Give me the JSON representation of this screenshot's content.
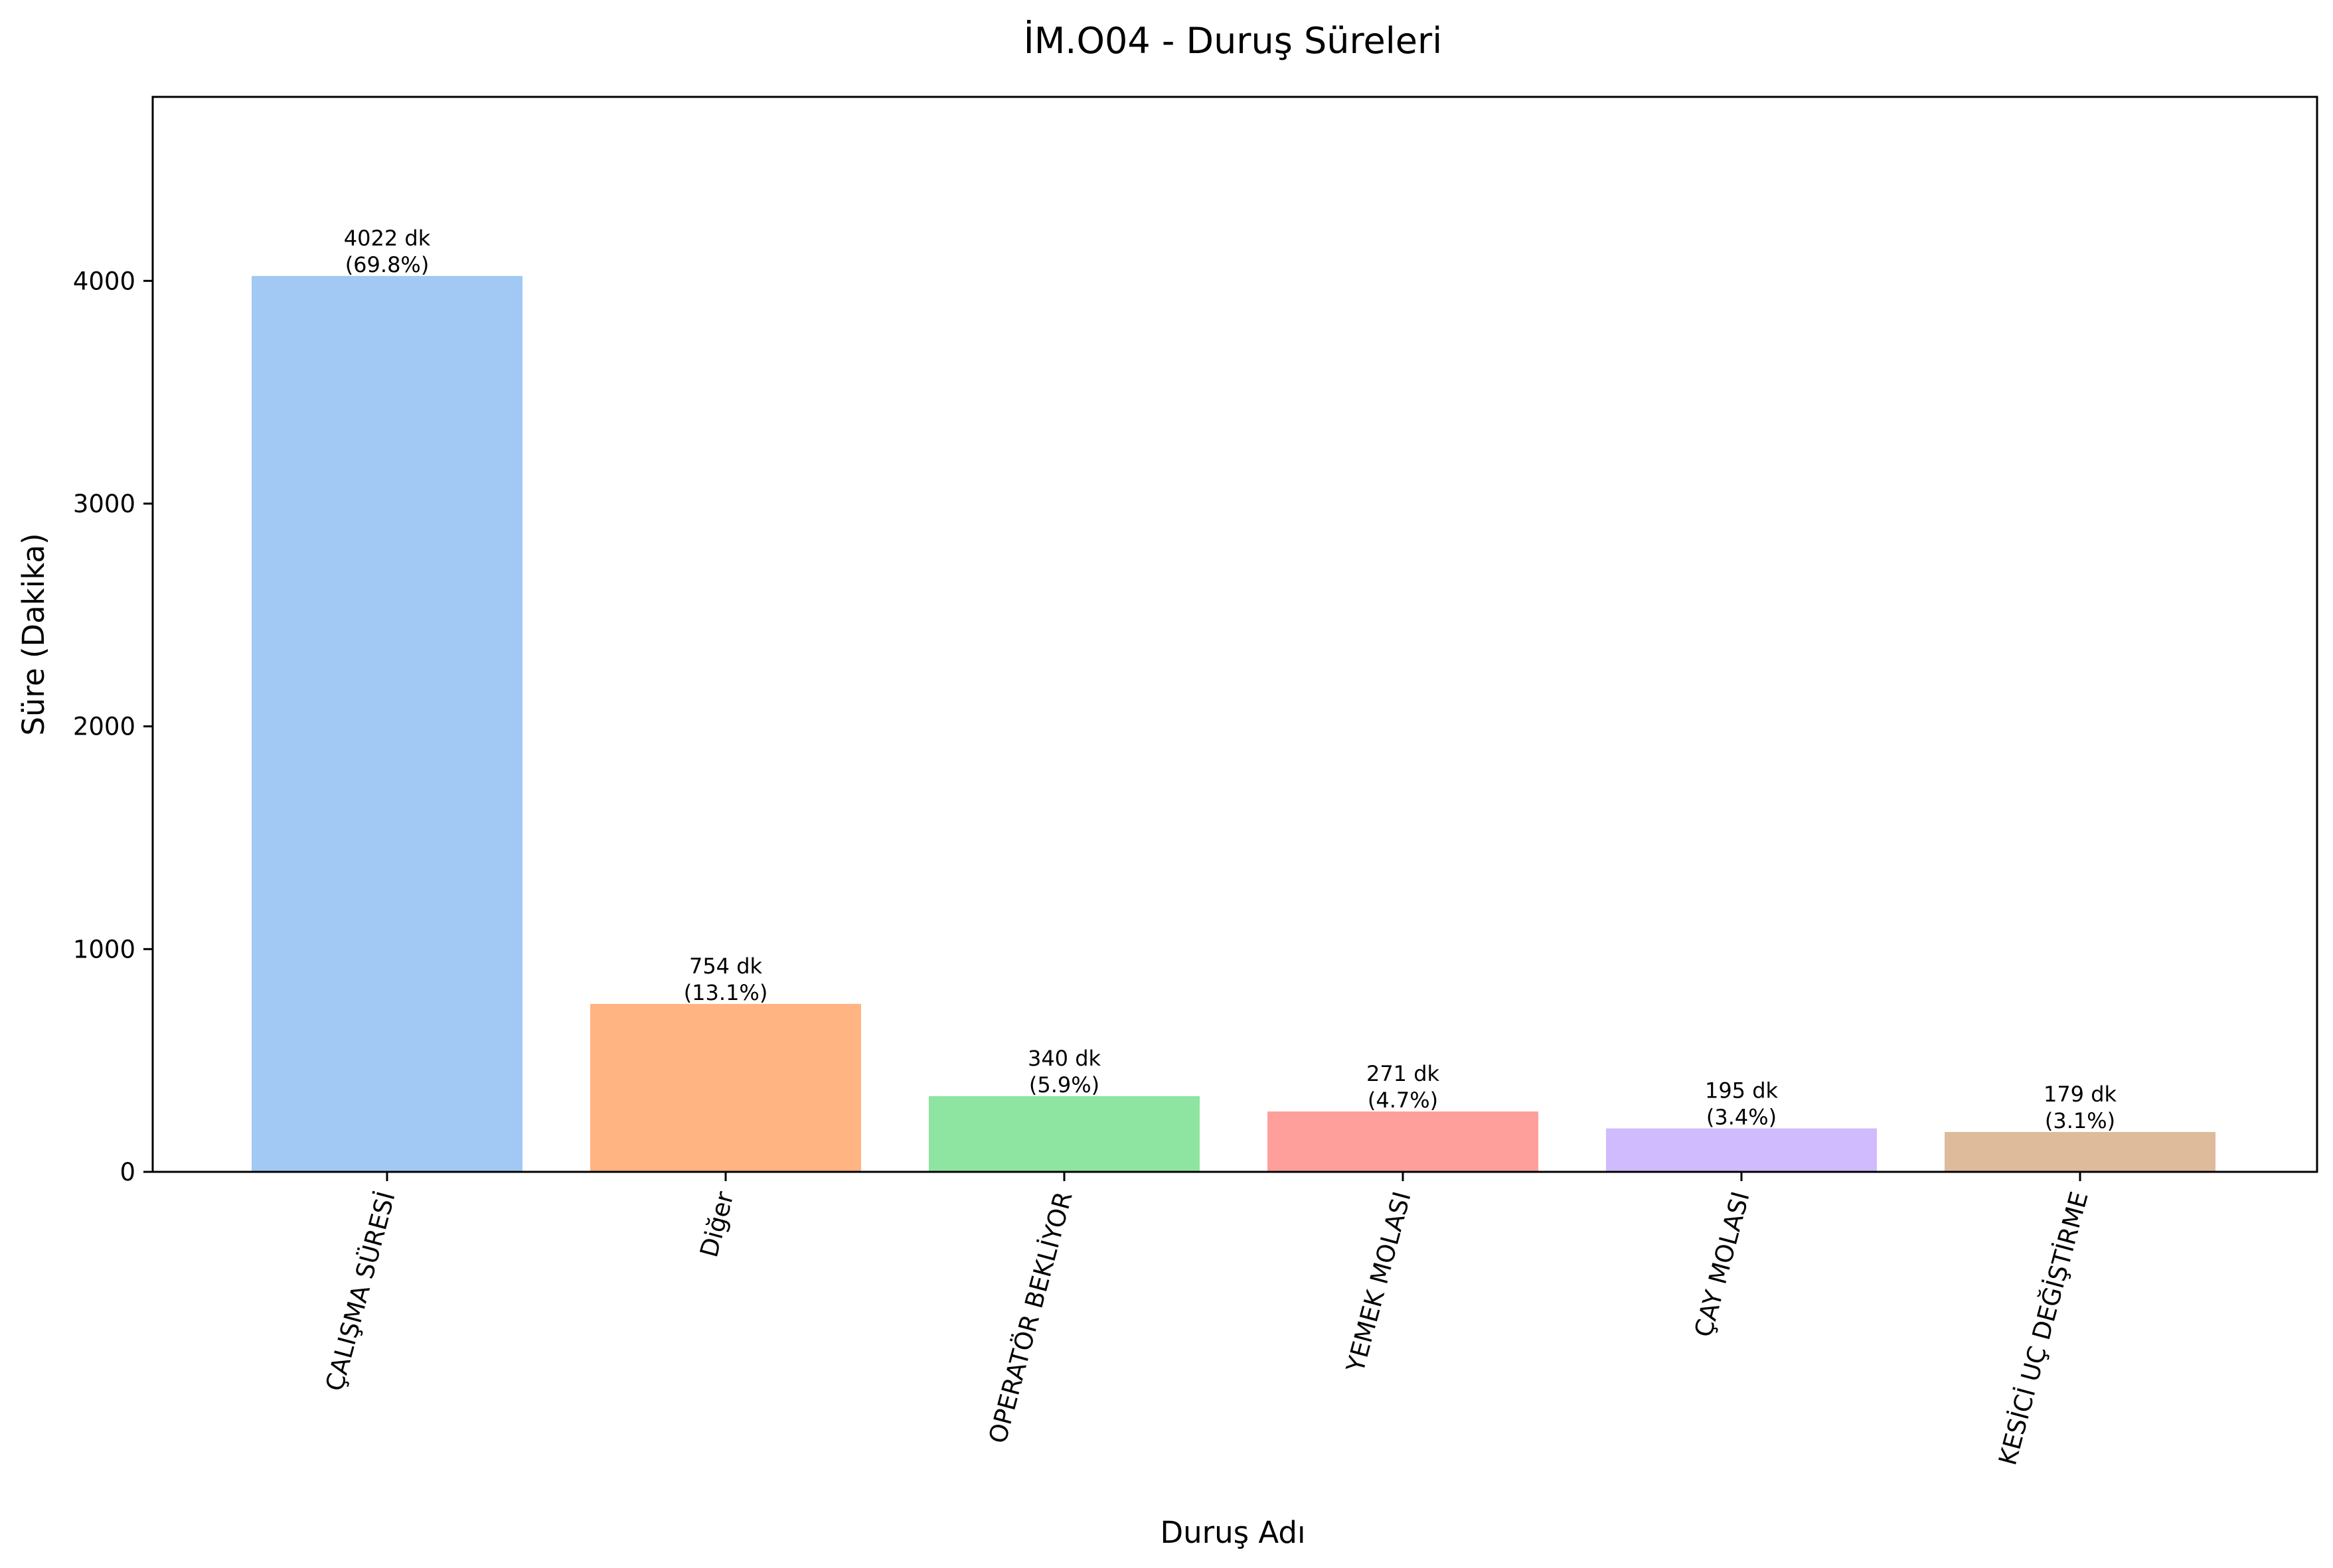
{
  "chart_data": {
    "type": "bar",
    "title": "İM.O04 - Duruş Süreleri",
    "xlabel": "Duruş Adı",
    "ylabel": "Süre (Dakika)",
    "ylim": [
      0,
      4826
    ],
    "yticks": [
      0,
      1000,
      2000,
      3000,
      4000
    ],
    "categories": [
      "ÇALIŞMA SÜRESİ",
      "Diğer",
      "OPERATÖR BEKLİYOR",
      "YEMEK MOLASI",
      "ÇAY MOLASI",
      "KESİCİ UÇ DEĞİŞTİRME"
    ],
    "values": [
      4022,
      754,
      340,
      271,
      195,
      179
    ],
    "value_labels": [
      "4022 dk",
      "754 dk",
      "340 dk",
      "271 dk",
      "195 dk",
      "179 dk"
    ],
    "percent_labels": [
      "(69.8%)",
      "(13.1%)",
      "(5.9%)",
      "(4.7%)",
      "(3.4%)",
      "(3.1%)"
    ],
    "colors": [
      "#a1c9f4",
      "#ffb482",
      "#8de5a1",
      "#ff9f9b",
      "#d0bbff",
      "#debb9b"
    ],
    "grid": false,
    "legend": false
  }
}
